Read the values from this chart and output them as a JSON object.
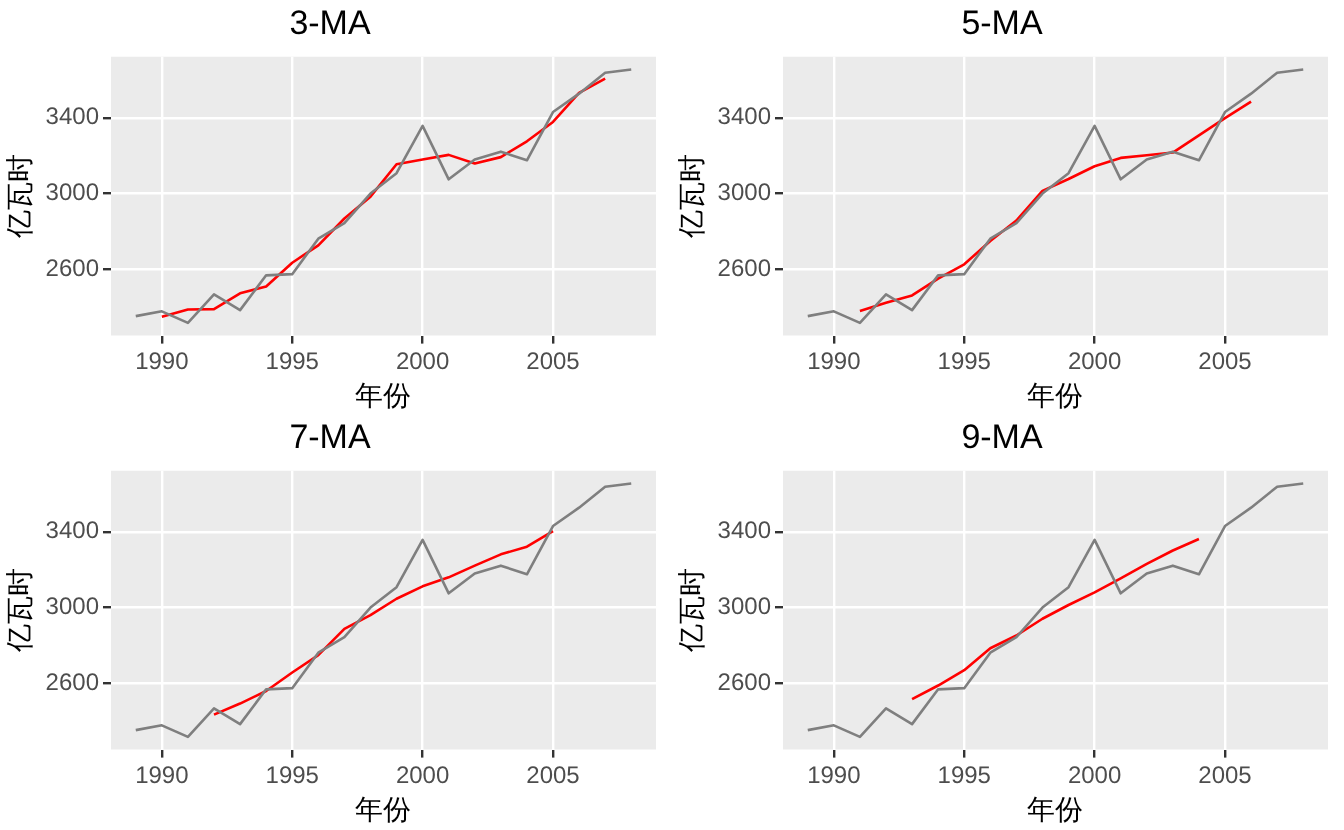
{
  "chart_data": [
    {
      "type": "line",
      "title": "3-MA",
      "xlabel": "年份",
      "ylabel": "亿瓦时",
      "xlim": [
        1988.05,
        2008.95
      ],
      "ylim": [
        2251.7,
        3721.8
      ],
      "xticks": [
        1990,
        1995,
        2000,
        2005
      ],
      "yticks": [
        2600,
        3000,
        3400
      ],
      "grid": true,
      "legend": false,
      "series": [
        {
          "color": "#7f7f7f",
          "x": [
            1989,
            1990,
            1991,
            1992,
            1993,
            1994,
            1995,
            1996,
            1997,
            1998,
            1999,
            2000,
            2001,
            2002,
            2003,
            2004,
            2005,
            2006,
            2007,
            2008
          ],
          "values": [
            2354.3,
            2379.7,
            2318.5,
            2469,
            2386.1,
            2569.5,
            2575.7,
            2762.7,
            2844.5,
            3000.7,
            3108.1,
            3357.5,
            3075.7,
            3180.6,
            3221.6,
            3176.2,
            3430.6,
            3527.5,
            3637.9,
            3655
          ]
        },
        {
          "color": "#ff0000",
          "x": [
            1990,
            1991,
            1992,
            1993,
            1994,
            1995,
            1996,
            1997,
            1998,
            1999,
            2000,
            2001,
            2002,
            2003,
            2004,
            2005,
            2006,
            2007
          ],
          "values": [
            2350.9,
            2389.1,
            2391.2,
            2474.9,
            2510.4,
            2636,
            2727.7,
            2869.3,
            2984.4,
            3155.4,
            3180.4,
            3204.6,
            3159.3,
            3192.8,
            3276.1,
            3378.1,
            3532,
            3606.8
          ]
        }
      ]
    },
    {
      "type": "line",
      "title": "5-MA",
      "xlabel": "年份",
      "ylabel": "亿瓦时",
      "xlim": [
        1988.05,
        2008.95
      ],
      "ylim": [
        2251.7,
        3721.8
      ],
      "xticks": [
        1990,
        1995,
        2000,
        2005
      ],
      "yticks": [
        2600,
        3000,
        3400
      ],
      "grid": true,
      "legend": false,
      "series": [
        {
          "color": "#7f7f7f",
          "x": [
            1989,
            1990,
            1991,
            1992,
            1993,
            1994,
            1995,
            1996,
            1997,
            1998,
            1999,
            2000,
            2001,
            2002,
            2003,
            2004,
            2005,
            2006,
            2007,
            2008
          ],
          "values": [
            2354.3,
            2379.7,
            2318.5,
            2469,
            2386.1,
            2569.5,
            2575.7,
            2762.7,
            2844.5,
            3000.7,
            3108.1,
            3357.5,
            3075.7,
            3180.6,
            3221.6,
            3176.2,
            3430.6,
            3527.5,
            3637.9,
            3655
          ]
        },
        {
          "color": "#ff0000",
          "x": [
            1991,
            1992,
            1993,
            1994,
            1995,
            1996,
            1997,
            1998,
            1999,
            2000,
            2001,
            2002,
            2003,
            2004,
            2005,
            2006
          ],
          "values": [
            2381.5,
            2424.6,
            2463.8,
            2552.6,
            2627.7,
            2750.6,
            2858.3,
            3014.7,
            3077.3,
            3144.5,
            3188.7,
            3202.3,
            3216.9,
            3307.3,
            3398.8,
            3485.4
          ]
        }
      ]
    },
    {
      "type": "line",
      "title": "7-MA",
      "xlabel": "年份",
      "ylabel": "亿瓦时",
      "xlim": [
        1988.05,
        2008.95
      ],
      "ylim": [
        2251.7,
        3721.8
      ],
      "xticks": [
        1990,
        1995,
        2000,
        2005
      ],
      "yticks": [
        2600,
        3000,
        3400
      ],
      "grid": true,
      "legend": false,
      "series": [
        {
          "color": "#7f7f7f",
          "x": [
            1989,
            1990,
            1991,
            1992,
            1993,
            1994,
            1995,
            1996,
            1997,
            1998,
            1999,
            2000,
            2001,
            2002,
            2003,
            2004,
            2005,
            2006,
            2007,
            2008
          ],
          "values": [
            2354.3,
            2379.7,
            2318.5,
            2469,
            2386.1,
            2569.5,
            2575.7,
            2762.7,
            2844.5,
            3000.7,
            3108.1,
            3357.5,
            3075.7,
            3180.6,
            3221.6,
            3176.2,
            3430.6,
            3527.5,
            3637.9,
            3655
          ]
        },
        {
          "color": "#ff0000",
          "x": [
            1992,
            1993,
            1994,
            1995,
            1996,
            1997,
            1998,
            1999,
            2000,
            2001,
            2002,
            2003,
            2004,
            2005
          ],
          "values": [
            2436.1,
            2494.5,
            2560.9,
            2658.3,
            2749.6,
            2888.4,
            2960.7,
            3047.1,
            3112.7,
            3160.1,
            3221.5,
            3281.4,
            3321.4,
            3404.2
          ]
        }
      ]
    },
    {
      "type": "line",
      "title": "9-MA",
      "xlabel": "年份",
      "ylabel": "亿瓦时",
      "xlim": [
        1988.05,
        2008.95
      ],
      "ylim": [
        2251.7,
        3721.8
      ],
      "xticks": [
        1990,
        1995,
        2000,
        2005
      ],
      "yticks": [
        2600,
        3000,
        3400
      ],
      "grid": true,
      "legend": false,
      "series": [
        {
          "color": "#7f7f7f",
          "x": [
            1989,
            1990,
            1991,
            1992,
            1993,
            1994,
            1995,
            1996,
            1997,
            1998,
            1999,
            2000,
            2001,
            2002,
            2003,
            2004,
            2005,
            2006,
            2007,
            2008
          ],
          "values": [
            2354.3,
            2379.7,
            2318.5,
            2469,
            2386.1,
            2569.5,
            2575.7,
            2762.7,
            2844.5,
            3000.7,
            3108.1,
            3357.5,
            3075.7,
            3180.6,
            3221.6,
            3176.2,
            3430.6,
            3527.5,
            3637.9,
            3655
          ]
        },
        {
          "color": "#ff0000",
          "x": [
            1993,
            1994,
            1995,
            1996,
            1997,
            1998,
            1999,
            2000,
            2001,
            2002,
            2003,
            2004
          ],
          "values": [
            2517.8,
            2589.6,
            2670.5,
            2786,
            2853.4,
            2941.7,
            3014.1,
            3080.9,
            3155.1,
            3230.9,
            3301.7,
            3362.5
          ]
        }
      ]
    }
  ]
}
